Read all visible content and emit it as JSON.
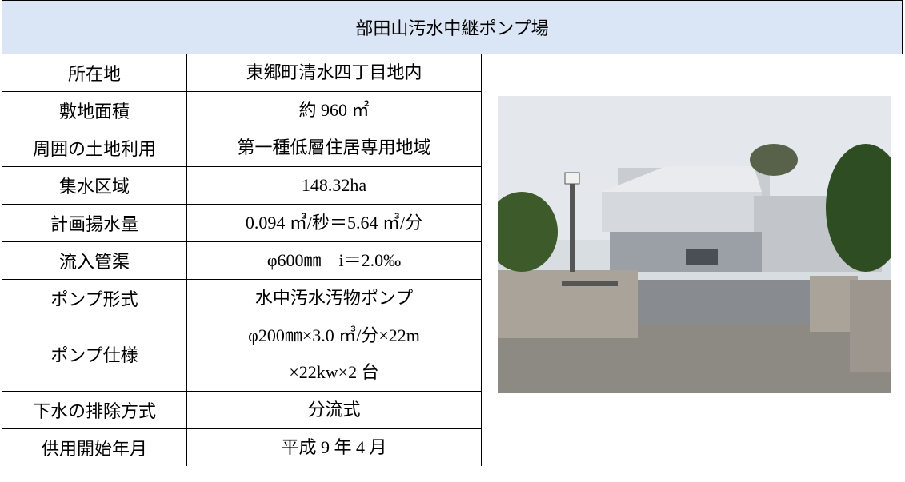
{
  "header": {
    "title": "部田山汚水中継ポンプ場"
  },
  "table": {
    "rows": [
      [
        "所在地",
        "東郷町清水四丁目地内"
      ],
      [
        "敷地面積",
        "約 960 ㎡"
      ],
      [
        "周囲の土地利用",
        "第一種低層住居専用地域"
      ],
      [
        "集水区域",
        "148.32ha"
      ],
      [
        "計画揚水量",
        "0.094 ㎥/秒＝5.64 ㎥/分"
      ],
      [
        "流入管渠",
        "φ600㎜　i＝2.0‰"
      ],
      [
        "ポンプ形式",
        "水中汚水汚物ポンプ"
      ],
      [
        "ポンプ仕様",
        [
          "φ200㎜×3.0 ㎥/分×22m",
          "×22kw×2 台"
        ]
      ],
      [
        "下水の排除方式",
        "分流式"
      ],
      [
        "供用開始年月",
        "平成 9 年 4 月"
      ]
    ]
  }
}
